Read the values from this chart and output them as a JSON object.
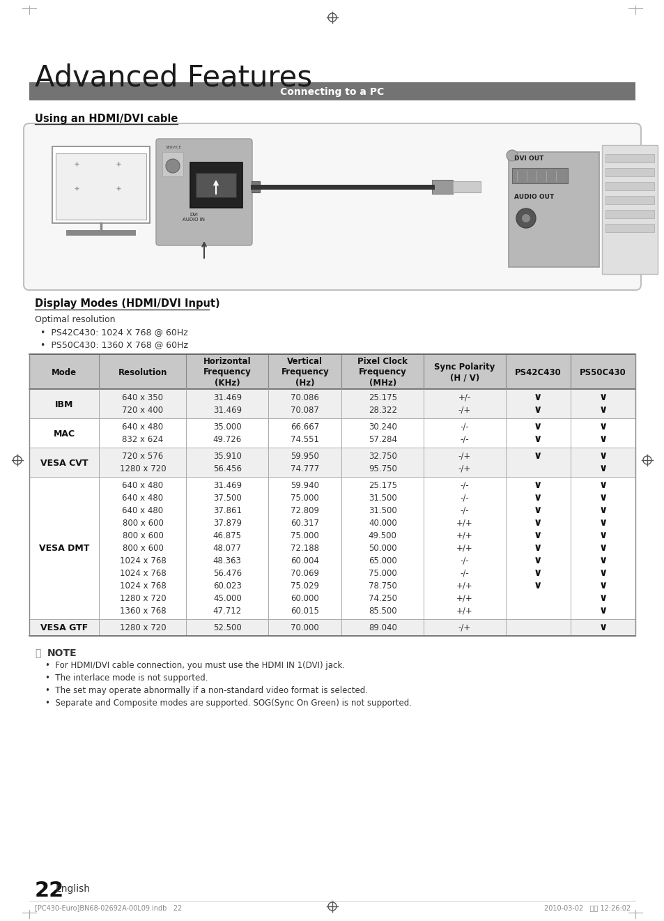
{
  "page_bg": "#ffffff",
  "title": "Advanced Features",
  "section_bar_text": "Connecting to a PC",
  "section_bar_bg": "#737373",
  "section_bar_text_color": "#ffffff",
  "subsection_title": "Using an HDMI/DVI cable",
  "display_modes_title": "Display Modes (HDMI/DVI Input)",
  "optimal_resolution_text": "Optimal resolution",
  "bullets": [
    "PS42C430: 1024 X 768 @ 60Hz",
    "PS50C430: 1360 X 768 @ 60Hz"
  ],
  "table_headers": [
    "Mode",
    "Resolution",
    "Horizontal\nFrequency\n(KHz)",
    "Vertical\nFrequency\n(Hz)",
    "Pixel Clock\nFrequency\n(MHz)",
    "Sync Polarity\n(H / V)",
    "PS42C430",
    "PS50C430"
  ],
  "table_header_bg": "#c8c8c8",
  "table_data": [
    [
      "IBM",
      [
        "640 x 350",
        "720 x 400"
      ],
      [
        "31.469",
        "31.469"
      ],
      [
        "70.086",
        "70.087"
      ],
      [
        "25.175",
        "28.322"
      ],
      [
        "+/-",
        "-/+"
      ],
      [
        "ck",
        "ck"
      ],
      [
        "ck",
        "ck"
      ]
    ],
    [
      "MAC",
      [
        "640 x 480",
        "832 x 624"
      ],
      [
        "35.000",
        "49.726"
      ],
      [
        "66.667",
        "74.551"
      ],
      [
        "30.240",
        "57.284"
      ],
      [
        "-/-",
        "-/-"
      ],
      [
        "ck",
        "ck"
      ],
      [
        "ck",
        "ck"
      ]
    ],
    [
      "VESA CVT",
      [
        "720 x 576",
        "1280 x 720"
      ],
      [
        "35.910",
        "56.456"
      ],
      [
        "59.950",
        "74.777"
      ],
      [
        "32.750",
        "95.750"
      ],
      [
        "-/+",
        "-/+"
      ],
      [
        "ck",
        ""
      ],
      [
        "ck",
        "ck"
      ]
    ],
    [
      "VESA DMT",
      [
        "640 x 480",
        "640 x 480",
        "640 x 480",
        "800 x 600",
        "800 x 600",
        "800 x 600",
        "1024 x 768",
        "1024 x 768",
        "1024 x 768",
        "1280 x 720",
        "1360 x 768"
      ],
      [
        "31.469",
        "37.500",
        "37.861",
        "37.879",
        "46.875",
        "48.077",
        "48.363",
        "56.476",
        "60.023",
        "45.000",
        "47.712"
      ],
      [
        "59.940",
        "75.000",
        "72.809",
        "60.317",
        "75.000",
        "72.188",
        "60.004",
        "70.069",
        "75.029",
        "60.000",
        "60.015"
      ],
      [
        "25.175",
        "31.500",
        "31.500",
        "40.000",
        "49.500",
        "50.000",
        "65.000",
        "75.000",
        "78.750",
        "74.250",
        "85.500"
      ],
      [
        "-/-",
        "-/-",
        "-/-",
        "+/+",
        "+/+",
        "+/+",
        "-/-",
        "-/-",
        "+/+",
        "+/+",
        "+/+"
      ],
      [
        "ck",
        "ck",
        "ck",
        "ck",
        "ck",
        "ck",
        "ck",
        "ck",
        "ck",
        "",
        ""
      ],
      [
        "ck",
        "ck",
        "ck",
        "ck",
        "ck",
        "ck",
        "ck",
        "ck",
        "ck",
        "ck",
        "ck"
      ]
    ],
    [
      "VESA GTF",
      [
        "1280 x 720"
      ],
      [
        "52.500"
      ],
      [
        "70.000"
      ],
      [
        "89.040"
      ],
      [
        "-/+"
      ],
      [
        ""
      ],
      [
        "ck"
      ]
    ]
  ],
  "note_items": [
    "For HDMI/DVI cable connection, you must use the HDMI IN 1(DVI) jack.",
    "The interlace mode is not supported.",
    "The set may operate abnormally if a non-standard video format is selected.",
    "Separate and Composite modes are supported. SOG(Sync On Green) is not supported."
  ],
  "page_number": "22",
  "bottom_footer_left": "[PC430-Euro]BN68-02692A-00L09.indb   22",
  "bottom_footer_right": "2010-03-02   오전 12:26:02"
}
